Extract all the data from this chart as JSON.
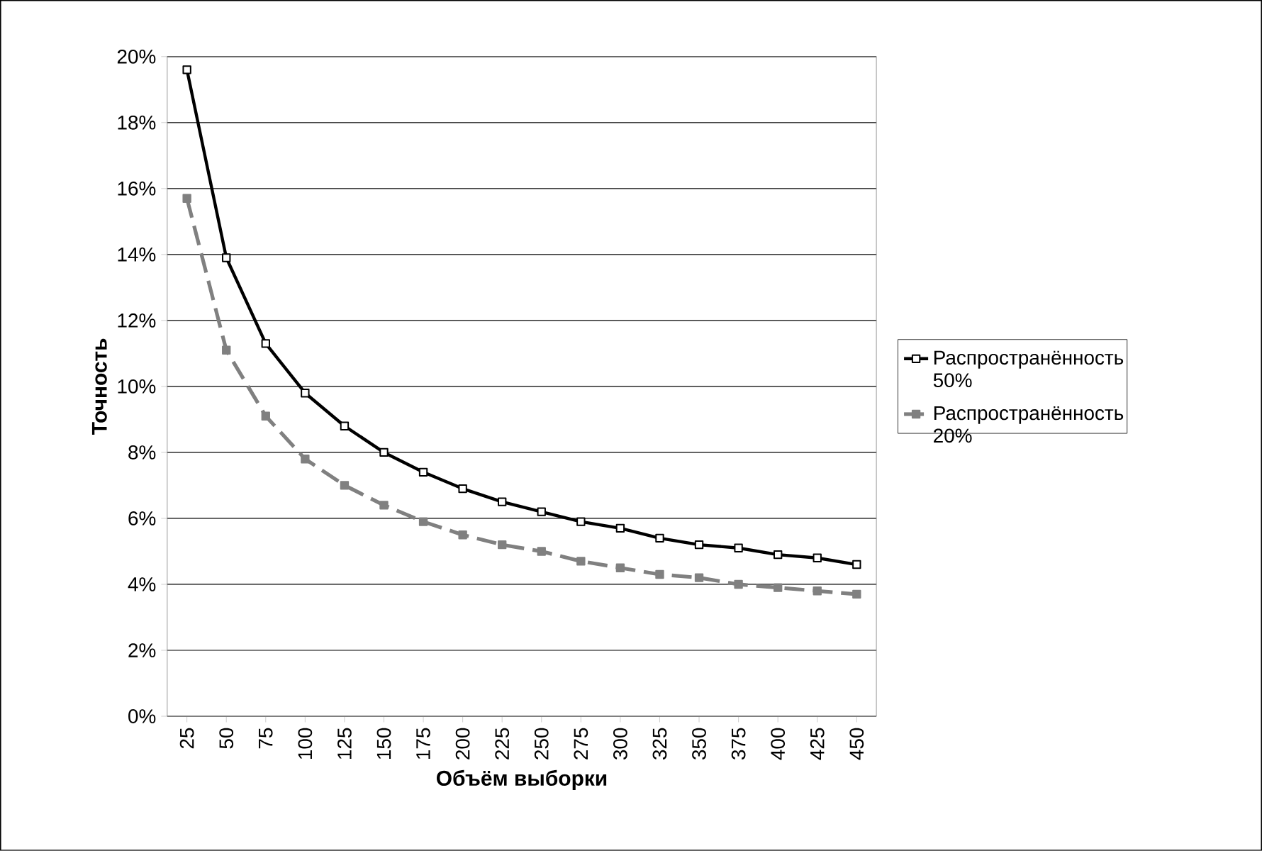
{
  "chart_data": {
    "type": "line",
    "xlabel": "Объём выборки",
    "ylabel": "Точность",
    "categories": [
      "25",
      "50",
      "75",
      "100",
      "125",
      "150",
      "175",
      "200",
      "225",
      "250",
      "275",
      "300",
      "325",
      "350",
      "375",
      "400",
      "425",
      "450"
    ],
    "series": [
      {
        "name": "Распространённость 50%",
        "color": "#000000",
        "line_style": "solid",
        "values": [
          19.6,
          13.9,
          11.3,
          9.8,
          8.8,
          8.0,
          7.4,
          6.9,
          6.5,
          6.2,
          5.9,
          5.7,
          5.4,
          5.2,
          5.1,
          4.9,
          4.8,
          4.6
        ]
      },
      {
        "name": "Распространённость 20%",
        "color": "#808080",
        "line_style": "dashed",
        "values": [
          15.7,
          11.1,
          9.1,
          7.8,
          7.0,
          6.4,
          5.9,
          5.5,
          5.2,
          5.0,
          4.7,
          4.5,
          4.3,
          4.2,
          4.0,
          3.9,
          3.8,
          3.7
        ]
      }
    ],
    "ylim": [
      0,
      20
    ],
    "yticks": [
      {
        "value": 0,
        "label": "0%"
      },
      {
        "value": 2,
        "label": "2%"
      },
      {
        "value": 4,
        "label": "4%"
      },
      {
        "value": 6,
        "label": "6%"
      },
      {
        "value": 8,
        "label": "8%"
      },
      {
        "value": 10,
        "label": "10%"
      },
      {
        "value": 12,
        "label": "12%"
      },
      {
        "value": 14,
        "label": "14%"
      },
      {
        "value": 16,
        "label": "16%"
      },
      {
        "value": 18,
        "label": "18%"
      },
      {
        "value": 20,
        "label": "20%"
      }
    ],
    "grid": "y",
    "legend": "right",
    "marker": "square"
  }
}
